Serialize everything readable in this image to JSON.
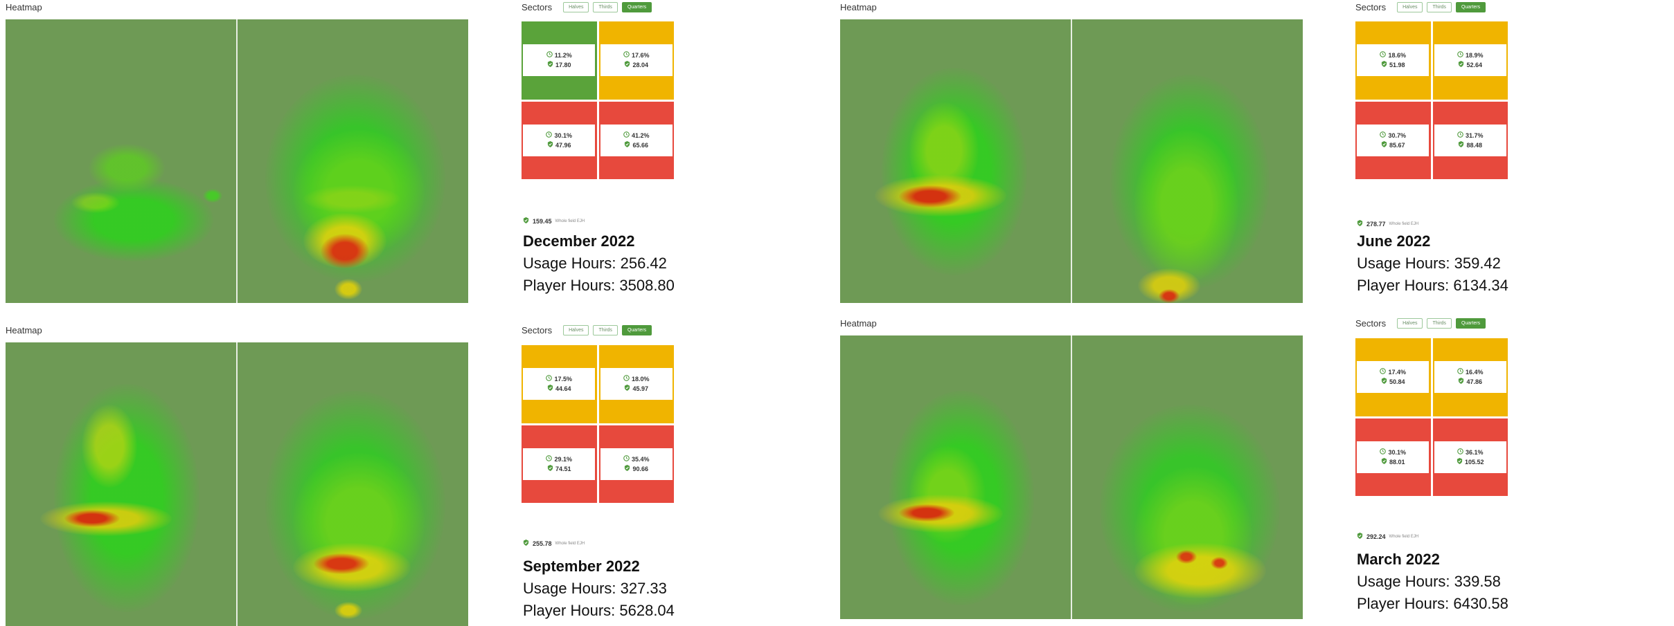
{
  "colors": {
    "green": "#5aa33a",
    "amber": "#f0b400",
    "red": "#e7493d",
    "toggle_active": "#4f9a3c"
  },
  "panels": [
    {
      "heatmap_label": "Heatmap",
      "sectors_label": "Sectors",
      "toggles": [
        "Halves",
        "Thirds",
        "Quarters"
      ],
      "active_toggle": "Quarters",
      "cells": [
        {
          "color": "green",
          "pct": "11.2%",
          "val": "17.80"
        },
        {
          "color": "amber",
          "pct": "17.6%",
          "val": "28.04"
        },
        {
          "color": "red",
          "pct": "30.1%",
          "val": "47.96"
        },
        {
          "color": "red",
          "pct": "41.2%",
          "val": "65.66"
        }
      ],
      "total": "159.45",
      "total_label": "Whole field EJH",
      "month": "December 2022",
      "usage": "Usage Hours: 256.42",
      "player": "Player Hours: 3508.80"
    },
    {
      "heatmap_label": "Heatmap",
      "sectors_label": "Sectors",
      "toggles": [
        "Halves",
        "Thirds",
        "Quarters"
      ],
      "active_toggle": "Quarters",
      "cells": [
        {
          "color": "amber",
          "pct": "18.6%",
          "val": "51.98"
        },
        {
          "color": "amber",
          "pct": "18.9%",
          "val": "52.64"
        },
        {
          "color": "red",
          "pct": "30.7%",
          "val": "85.67"
        },
        {
          "color": "red",
          "pct": "31.7%",
          "val": "88.48"
        }
      ],
      "total": "278.77",
      "total_label": "Whole field EJH",
      "month": "June 2022",
      "usage": "Usage Hours: 359.42",
      "player": "Player Hours: 6134.34"
    },
    {
      "heatmap_label": "Heatmap",
      "sectors_label": "Sectors",
      "toggles": [
        "Halves",
        "Thirds",
        "Quarters"
      ],
      "active_toggle": "Quarters",
      "cells": [
        {
          "color": "amber",
          "pct": "17.5%",
          "val": "44.64"
        },
        {
          "color": "amber",
          "pct": "18.0%",
          "val": "45.97"
        },
        {
          "color": "red",
          "pct": "29.1%",
          "val": "74.51"
        },
        {
          "color": "red",
          "pct": "35.4%",
          "val": "90.66"
        }
      ],
      "total": "255.78",
      "total_label": "Whole field EJH",
      "month": "September 2022",
      "usage": "Usage Hours: 327.33",
      "player": "Player Hours: 5628.04"
    },
    {
      "heatmap_label": "Heatmap",
      "sectors_label": "Sectors",
      "toggles": [
        "Halves",
        "Thirds",
        "Quarters"
      ],
      "active_toggle": "Quarters",
      "cells": [
        {
          "color": "amber",
          "pct": "17.4%",
          "val": "50.84"
        },
        {
          "color": "amber",
          "pct": "16.4%",
          "val": "47.86"
        },
        {
          "color": "red",
          "pct": "30.1%",
          "val": "88.01"
        },
        {
          "color": "red",
          "pct": "36.1%",
          "val": "105.52"
        }
      ],
      "total": "292.24",
      "total_label": "Whole field EJH",
      "month": "March 2022",
      "usage": "Usage Hours: 339.58",
      "player": "Player Hours: 6430.58"
    }
  ]
}
